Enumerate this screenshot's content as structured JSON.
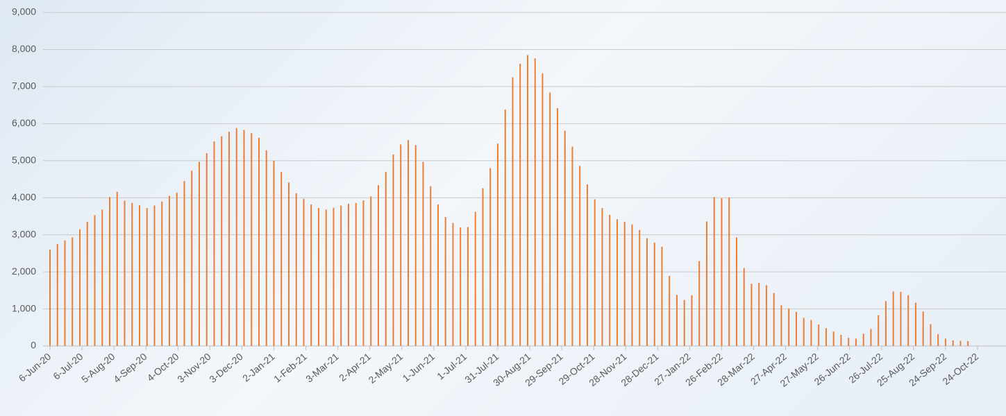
{
  "chart_data": {
    "type": "bar",
    "color": "#ed7d31",
    "grid": true,
    "x": [
      "6-Jun-20",
      "13-Jun-20",
      "20-Jun-20",
      "27-Jun-20",
      "4-Jul-20",
      "11-Jul-20",
      "18-Jul-20",
      "25-Jul-20",
      "1-Aug-20",
      "8-Aug-20",
      "15-Aug-20",
      "22-Aug-20",
      "29-Aug-20",
      "5-Sep-20",
      "12-Sep-20",
      "19-Sep-20",
      "26-Sep-20",
      "3-Oct-20",
      "10-Oct-20",
      "17-Oct-20",
      "24-Oct-20",
      "31-Oct-20",
      "7-Nov-20",
      "14-Nov-20",
      "21-Nov-20",
      "28-Nov-20",
      "5-Dec-20",
      "12-Dec-20",
      "19-Dec-20",
      "26-Dec-20",
      "2-Jan-21",
      "9-Jan-21",
      "16-Jan-21",
      "23-Jan-21",
      "30-Jan-21",
      "6-Feb-21",
      "13-Feb-21",
      "20-Feb-21",
      "27-Feb-21",
      "6-Mar-21",
      "13-Mar-21",
      "20-Mar-21",
      "27-Mar-21",
      "3-Apr-21",
      "10-Apr-21",
      "17-Apr-21",
      "24-Apr-21",
      "1-May-21",
      "8-May-21",
      "15-May-21",
      "22-May-21",
      "29-May-21",
      "5-Jun-21",
      "12-Jun-21",
      "19-Jun-21",
      "26-Jun-21",
      "3-Jul-21",
      "10-Jul-21",
      "17-Jul-21",
      "24-Jul-21",
      "31-Jul-21",
      "7-Aug-21",
      "14-Aug-21",
      "21-Aug-21",
      "28-Aug-21",
      "4-Sep-21",
      "11-Sep-21",
      "18-Sep-21",
      "25-Sep-21",
      "2-Oct-21",
      "9-Oct-21",
      "16-Oct-21",
      "23-Oct-21",
      "30-Oct-21",
      "6-Nov-21",
      "13-Nov-21",
      "20-Nov-21",
      "27-Nov-21",
      "4-Dec-21",
      "11-Dec-21",
      "18-Dec-21",
      "25-Dec-21",
      "1-Jan-22",
      "8-Jan-22",
      "15-Jan-22",
      "22-Jan-22",
      "29-Jan-22",
      "5-Feb-22",
      "12-Feb-22",
      "19-Feb-22",
      "26-Feb-22",
      "5-Mar-22",
      "12-Mar-22",
      "19-Mar-22",
      "26-Mar-22",
      "2-Apr-22",
      "9-Apr-22",
      "16-Apr-22",
      "23-Apr-22",
      "30-Apr-22",
      "7-May-22",
      "14-May-22",
      "21-May-22",
      "28-May-22",
      "4-Jun-22",
      "11-Jun-22",
      "18-Jun-22",
      "25-Jun-22",
      "2-Jul-22",
      "9-Jul-22",
      "16-Jul-22",
      "23-Jul-22",
      "30-Jul-22",
      "6-Aug-22",
      "13-Aug-22",
      "20-Aug-22",
      "27-Aug-22",
      "3-Sep-22",
      "10-Sep-22",
      "17-Sep-22",
      "24-Sep-22",
      "1-Oct-22",
      "8-Oct-22",
      "15-Oct-22"
    ],
    "values": [
      2600,
      2750,
      2850,
      2930,
      3150,
      3350,
      3530,
      3680,
      4020,
      4160,
      3920,
      3860,
      3800,
      3720,
      3790,
      3900,
      4050,
      4140,
      4450,
      4730,
      4970,
      5200,
      5520,
      5660,
      5780,
      5880,
      5830,
      5740,
      5620,
      5280,
      5000,
      4700,
      4410,
      4120,
      3970,
      3820,
      3720,
      3680,
      3730,
      3790,
      3840,
      3860,
      3930,
      4040,
      4340,
      4700,
      5170,
      5440,
      5560,
      5420,
      4970,
      4310,
      3820,
      3480,
      3320,
      3200,
      3210,
      3620,
      4260,
      4800,
      5460,
      6380,
      7250,
      7620,
      7850,
      7760,
      7360,
      6840,
      6420,
      5810,
      5380,
      4860,
      4360,
      3960,
      3720,
      3540,
      3420,
      3350,
      3280,
      3130,
      2910,
      2790,
      2680,
      1890,
      1380,
      1240,
      1370,
      2290,
      3360,
      4020,
      3990,
      4010,
      2930,
      2100,
      1680,
      1700,
      1640,
      1430,
      1100,
      1010,
      920,
      760,
      700,
      580,
      480,
      390,
      300,
      220,
      200,
      330,
      460,
      830,
      1210,
      1470,
      1460,
      1370,
      1170,
      930,
      590,
      320,
      200,
      150,
      140,
      130
    ],
    "xlim": [
      "6-Jun-20",
      "24-Oct-22"
    ],
    "xticks": [
      "6-Jun-20",
      "6-Jul-20",
      "5-Aug-20",
      "4-Sep-20",
      "4-Oct-20",
      "3-Nov-20",
      "3-Dec-20",
      "2-Jan-21",
      "1-Feb-21",
      "3-Mar-21",
      "2-Apr-21",
      "2-May-21",
      "1-Jun-21",
      "1-Jul-21",
      "31-Jul-21",
      "30-Aug-21",
      "29-Sep-21",
      "29-Oct-21",
      "28-Nov-21",
      "28-Dec-21",
      "27-Jan-22",
      "26-Feb-22",
      "28-Mar-22",
      "27-Apr-22",
      "27-May-22",
      "26-Jun-22",
      "26-Jul-22",
      "25-Aug-22",
      "24-Sep-22",
      "24-Oct-22"
    ],
    "ylim": [
      0,
      9000
    ],
    "yticks": [
      0,
      {
        "value": 1000,
        "label": "1,000"
      },
      {
        "value": 2000,
        "label": "2,000"
      },
      {
        "value": 3000,
        "label": "3,000"
      },
      {
        "value": 4000,
        "label": "4,000"
      },
      {
        "value": 5000,
        "label": "5,000"
      },
      {
        "value": 6000,
        "label": "6,000"
      },
      {
        "value": 7000,
        "label": "7,000"
      },
      {
        "value": 8000,
        "label": "8,000"
      },
      {
        "value": 9000,
        "label": "9,000"
      }
    ]
  }
}
